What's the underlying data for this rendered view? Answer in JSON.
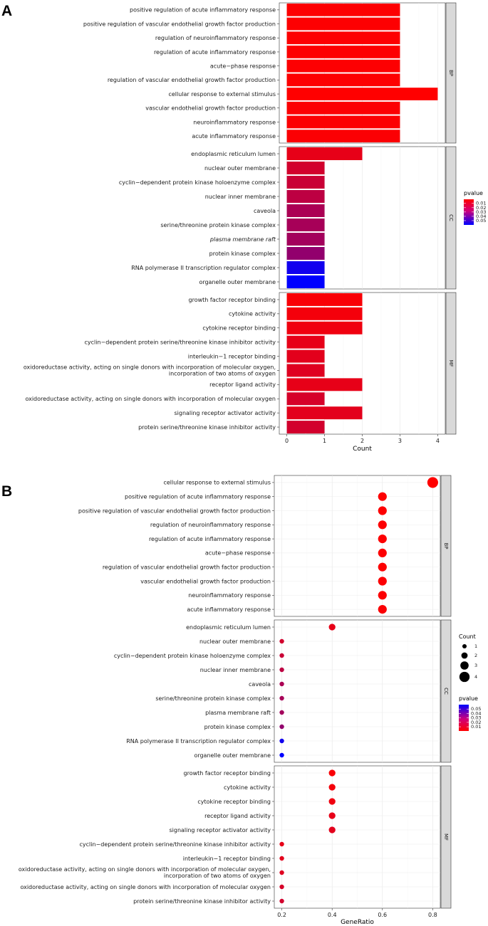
{
  "panel_a": {
    "label": "A",
    "chart_data": {
      "type": "bar",
      "orientation": "horizontal",
      "xlabel": "Count",
      "xlim": [
        -0.2,
        4.2
      ],
      "xticks": [
        "0",
        "1",
        "2",
        "3",
        "4"
      ],
      "facets": [
        {
          "strip": "BP",
          "bars": [
            {
              "label": "positive regulation of acute inflammatory response",
              "count": 3,
              "pvalue": 0.0009
            },
            {
              "label": "positive regulation of vascular endothelial growth factor production",
              "count": 3,
              "pvalue": 0.0009
            },
            {
              "label": "regulation of neuroinflammatory response",
              "count": 3,
              "pvalue": 0.001
            },
            {
              "label": "regulation of acute inflammatory response",
              "count": 3,
              "pvalue": 0.001
            },
            {
              "label": "acute−phase response",
              "count": 3,
              "pvalue": 0.001
            },
            {
              "label": "regulation of vascular endothelial growth factor production",
              "count": 3,
              "pvalue": 0.001
            },
            {
              "label": "cellular response to external stimulus",
              "count": 4,
              "pvalue": 0.0005
            },
            {
              "label": "vascular endothelial growth factor production",
              "count": 3,
              "pvalue": 0.0012
            },
            {
              "label": "neuroinflammatory response",
              "count": 3,
              "pvalue": 0.0013
            },
            {
              "label": "acute inflammatory response",
              "count": 3,
              "pvalue": 0.0015
            }
          ]
        },
        {
          "strip": "CC",
          "bars": [
            {
              "label": "endoplasmic reticulum lumen",
              "count": 2,
              "pvalue": 0.006
            },
            {
              "label": "nuclear outer membrane",
              "count": 1,
              "pvalue": 0.011
            },
            {
              "label": "cyclin−dependent protein kinase holoenzyme complex",
              "count": 1,
              "pvalue": 0.013
            },
            {
              "label": "nuclear inner membrane",
              "count": 1,
              "pvalue": 0.016
            },
            {
              "label": "caveola",
              "count": 1,
              "pvalue": 0.02
            },
            {
              "label": "serine/threonine protein kinase complex",
              "count": 1,
              "pvalue": 0.021
            },
            {
              "label": "plasma membrane raft",
              "count": 1,
              "pvalue": 0.022,
              "italic": true
            },
            {
              "label": "protein kinase complex",
              "count": 1,
              "pvalue": 0.026
            },
            {
              "label": "RNA polymerase II transcription regulator complex",
              "count": 1,
              "pvalue": 0.056
            },
            {
              "label": "organelle outer membrane",
              "count": 1,
              "pvalue": 0.06
            }
          ]
        },
        {
          "strip": "MF",
          "bars": [
            {
              "label": "growth factor receptor binding",
              "count": 2,
              "pvalue": 0.002
            },
            {
              "label": "cytokine activity",
              "count": 2,
              "pvalue": 0.003
            },
            {
              "label": "cytokine receptor binding",
              "count": 2,
              "pvalue": 0.004
            },
            {
              "label": "cyclin−dependent protein serine/threonine kinase inhibitor activity",
              "count": 1,
              "pvalue": 0.006
            },
            {
              "label": "interleukin−1 receptor binding",
              "count": 1,
              "pvalue": 0.007
            },
            {
              "label": "oxidoreductase activity, acting on single donors with incorporation of molecular oxygen,\nincorporation of two atoms of oxygen",
              "count": 1,
              "pvalue": 0.008
            },
            {
              "label": "receptor ligand activity",
              "count": 2,
              "pvalue": 0.006
            },
            {
              "label": "oxidoreductase activity, acting on single donors with incorporation of molecular oxygen",
              "count": 1,
              "pvalue": 0.01
            },
            {
              "label": "signaling receptor activator activity",
              "count": 2,
              "pvalue": 0.007
            },
            {
              "label": "protein serine/threonine kinase inhibitor activity",
              "count": 1,
              "pvalue": 0.011
            }
          ]
        }
      ],
      "legend": {
        "title": "pvalue",
        "ticks": [
          "0.01",
          "0.02",
          "0.03",
          "0.04",
          "0.05"
        ],
        "tick_values": [
          0.01,
          0.02,
          0.03,
          0.04,
          0.05
        ],
        "range": [
          0.0005,
          0.06
        ],
        "low_color": "#ff0000",
        "high_color": "#0000ff"
      }
    }
  },
  "panel_b": {
    "label": "B",
    "chart_data": {
      "type": "scatter",
      "xlabel": "GeneRatio",
      "xlim": [
        0.17,
        0.83
      ],
      "xticks": [
        "0.2",
        "0.4",
        "0.6",
        "0.8"
      ],
      "xtick_values": [
        0.2,
        0.4,
        0.6,
        0.8
      ],
      "facets": [
        {
          "strip": "BP",
          "points": [
            {
              "label": "cellular response to external stimulus",
              "generatio": 0.8,
              "count": 4,
              "pvalue": 0.0005
            },
            {
              "label": "positive regulation of acute inflammatory response",
              "generatio": 0.6,
              "count": 3,
              "pvalue": 0.0009
            },
            {
              "label": "positive regulation of vascular endothelial growth factor production",
              "generatio": 0.6,
              "count": 3,
              "pvalue": 0.0009
            },
            {
              "label": "regulation of neuroinflammatory response",
              "generatio": 0.6,
              "count": 3,
              "pvalue": 0.001
            },
            {
              "label": "regulation of acute inflammatory response",
              "generatio": 0.6,
              "count": 3,
              "pvalue": 0.001
            },
            {
              "label": "acute−phase response",
              "generatio": 0.6,
              "count": 3,
              "pvalue": 0.001
            },
            {
              "label": "regulation of vascular endothelial growth factor production",
              "generatio": 0.6,
              "count": 3,
              "pvalue": 0.001
            },
            {
              "label": "vascular endothelial growth factor production",
              "generatio": 0.6,
              "count": 3,
              "pvalue": 0.0012
            },
            {
              "label": "neuroinflammatory response",
              "generatio": 0.6,
              "count": 3,
              "pvalue": 0.0013
            },
            {
              "label": "acute inflammatory response",
              "generatio": 0.6,
              "count": 3,
              "pvalue": 0.0015
            }
          ]
        },
        {
          "strip": "CC",
          "points": [
            {
              "label": "endoplasmic reticulum lumen",
              "generatio": 0.4,
              "count": 2,
              "pvalue": 0.006
            },
            {
              "label": "nuclear outer membrane",
              "generatio": 0.2,
              "count": 1,
              "pvalue": 0.011
            },
            {
              "label": "cyclin−dependent protein kinase holoenzyme complex",
              "generatio": 0.2,
              "count": 1,
              "pvalue": 0.013
            },
            {
              "label": "nuclear inner membrane",
              "generatio": 0.2,
              "count": 1,
              "pvalue": 0.016
            },
            {
              "label": "caveola",
              "generatio": 0.2,
              "count": 1,
              "pvalue": 0.02
            },
            {
              "label": "serine/threonine protein kinase complex",
              "generatio": 0.2,
              "count": 1,
              "pvalue": 0.021
            },
            {
              "label": "plasma membrane raft",
              "generatio": 0.2,
              "count": 1,
              "pvalue": 0.022
            },
            {
              "label": "protein kinase complex",
              "generatio": 0.2,
              "count": 1,
              "pvalue": 0.026
            },
            {
              "label": "RNA polymerase II transcription regulator complex",
              "generatio": 0.2,
              "count": 1,
              "pvalue": 0.056
            },
            {
              "label": "organelle outer membrane",
              "generatio": 0.2,
              "count": 1,
              "pvalue": 0.06
            }
          ]
        },
        {
          "strip": "MF",
          "points": [
            {
              "label": "growth factor receptor binding",
              "generatio": 0.4,
              "count": 2,
              "pvalue": 0.002
            },
            {
              "label": "cytokine activity",
              "generatio": 0.4,
              "count": 2,
              "pvalue": 0.003
            },
            {
              "label": "cytokine receptor binding",
              "generatio": 0.4,
              "count": 2,
              "pvalue": 0.004
            },
            {
              "label": "receptor ligand activity",
              "generatio": 0.4,
              "count": 2,
              "pvalue": 0.006
            },
            {
              "label": "signaling receptor activator activity",
              "generatio": 0.4,
              "count": 2,
              "pvalue": 0.007
            },
            {
              "label": "cyclin−dependent protein serine/threonine kinase inhibitor activity",
              "generatio": 0.2,
              "count": 1,
              "pvalue": 0.006
            },
            {
              "label": "interleukin−1 receptor binding",
              "generatio": 0.2,
              "count": 1,
              "pvalue": 0.007
            },
            {
              "label": "oxidoreductase activity, acting on single donors with incorporation of molecular oxygen,\nincorporation of two atoms of oxygen",
              "generatio": 0.2,
              "count": 1,
              "pvalue": 0.008
            },
            {
              "label": "oxidoreductase activity, acting on single donors with incorporation of molecular oxygen",
              "generatio": 0.2,
              "count": 1,
              "pvalue": 0.01
            },
            {
              "label": "protein serine/threonine kinase inhibitor activity",
              "generatio": 0.2,
              "count": 1,
              "pvalue": 0.011
            }
          ]
        }
      ],
      "size_legend": {
        "title": "Count",
        "values": [
          1,
          2,
          3,
          4
        ],
        "labels": [
          "1",
          "2",
          "3",
          "4"
        ]
      },
      "color_legend": {
        "title": "pvalue",
        "ticks": [
          "0.05",
          "0.04",
          "0.03",
          "0.02",
          "0.01"
        ],
        "tick_values": [
          0.05,
          0.04,
          0.03,
          0.02,
          0.01
        ],
        "range": [
          0.0005,
          0.06
        ],
        "low_color": "#ff0000",
        "high_color": "#0000ff"
      }
    }
  }
}
